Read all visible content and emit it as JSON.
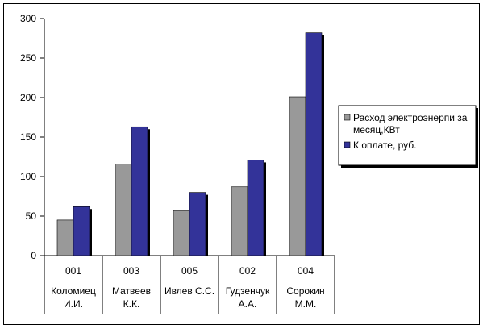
{
  "chart_data": {
    "type": "bar",
    "y_axis": {
      "min": 0,
      "max": 300,
      "step": 50,
      "ticks": [
        "0",
        "50",
        "100",
        "150",
        "200",
        "250",
        "300"
      ]
    },
    "categories": [
      {
        "code": "001",
        "name_line1": "Коломиец",
        "name_line2": "И.И."
      },
      {
        "code": "003",
        "name_line1": "Матвеев",
        "name_line2": "К.К."
      },
      {
        "code": "005",
        "name_line1": "Ивлев С.С.",
        "name_line2": ""
      },
      {
        "code": "002",
        "name_line1": "Гудзенчук",
        "name_line2": "А.А."
      },
      {
        "code": "004",
        "name_line1": "Сорокин",
        "name_line2": "М.М."
      }
    ],
    "series": [
      {
        "name_line1": "Расход электроэнерпи за",
        "name_line2": "месяц,КВт",
        "color": "#999999",
        "values": [
          45,
          116,
          57,
          87,
          201
        ]
      },
      {
        "name_line1": "К оплате, руб.",
        "name_line2": "",
        "color": "#333399",
        "values": [
          62,
          163,
          80,
          121,
          282
        ]
      }
    ],
    "legend_position": "right",
    "grid": false,
    "plot_background": "#ffffff",
    "axis_color": "#000000",
    "shadow_color": "#000000"
  }
}
